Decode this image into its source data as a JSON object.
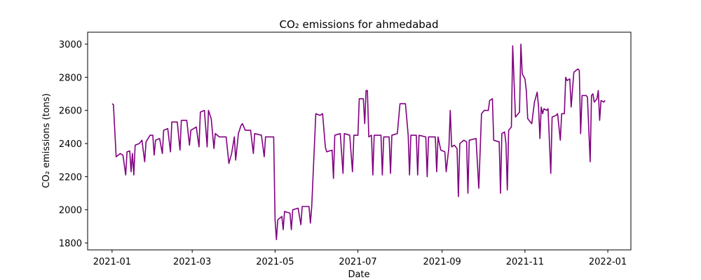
{
  "chart_data": {
    "type": "line",
    "title": "CO₂ emissions for ahmedabad",
    "x_label": "Date",
    "y_label": "CO₂ emissions (tons)",
    "color": "#800080",
    "x": [
      0,
      1,
      3,
      6,
      8,
      10,
      11,
      13,
      14,
      15,
      16,
      17,
      20,
      22,
      24,
      25,
      28,
      30,
      31,
      32,
      35,
      37,
      38,
      41,
      43,
      44,
      48,
      50,
      51,
      55,
      57,
      58,
      62,
      64,
      65,
      68,
      70,
      71,
      73,
      75,
      76,
      79,
      84,
      86,
      88,
      90,
      91,
      93,
      95,
      96,
      98,
      102,
      104,
      105,
      110,
      112,
      113,
      119,
      120,
      121,
      122,
      125,
      126,
      127,
      131,
      132,
      133,
      137,
      139,
      140,
      145,
      146,
      147,
      150,
      153,
      155,
      157,
      158,
      162,
      163,
      164,
      168,
      170,
      171,
      175,
      177,
      178,
      181,
      182,
      185,
      186,
      187,
      188,
      189,
      191,
      192,
      193,
      198,
      199,
      200,
      204,
      205,
      206,
      210,
      212,
      216,
      218,
      219,
      220,
      224,
      225,
      226,
      231,
      232,
      233,
      238,
      239,
      240,
      242,
      245,
      246,
      248,
      249,
      250,
      252,
      254,
      255,
      256,
      259,
      261,
      262,
      263,
      268,
      270,
      272,
      274,
      277,
      278,
      280,
      281,
      285,
      286,
      287,
      289,
      290,
      291,
      292,
      294,
      295,
      297,
      300,
      301,
      302,
      304,
      305,
      306,
      308,
      309,
      311,
      313,
      314,
      315,
      316,
      317,
      318,
      320,
      321,
      323,
      324,
      327,
      328,
      330,
      331,
      333,
      334,
      335,
      337,
      338,
      340,
      343,
      344,
      345,
      346,
      349,
      350,
      352,
      353,
      354,
      355,
      357,
      358,
      359,
      360,
      362,
      363
    ],
    "values": [
      2640,
      2635,
      2320,
      2340,
      2330,
      2210,
      2350,
      2355,
      2230,
      2340,
      2210,
      2390,
      2400,
      2420,
      2290,
      2410,
      2450,
      2450,
      2330,
      2420,
      2430,
      2340,
      2480,
      2490,
      2350,
      2530,
      2530,
      2360,
      2540,
      2540,
      2390,
      2480,
      2500,
      2380,
      2590,
      2600,
      2380,
      2600,
      2550,
      2370,
      2460,
      2440,
      2440,
      2280,
      2340,
      2440,
      2300,
      2460,
      2510,
      2520,
      2480,
      2480,
      2340,
      2460,
      2450,
      2320,
      2440,
      2440,
      1940,
      1820,
      1940,
      1960,
      1880,
      1990,
      1980,
      1880,
      2000,
      2010,
      1910,
      2020,
      2020,
      1920,
      2020,
      2580,
      2570,
      2580,
      2380,
      2350,
      2360,
      2190,
      2450,
      2460,
      2220,
      2460,
      2450,
      2230,
      2450,
      2450,
      2670,
      2670,
      2520,
      2720,
      2720,
      2440,
      2450,
      2210,
      2450,
      2450,
      2210,
      2440,
      2440,
      2220,
      2450,
      2460,
      2640,
      2640,
      2450,
      2210,
      2450,
      2450,
      2210,
      2450,
      2440,
      2200,
      2440,
      2440,
      2230,
      2440,
      2360,
      2350,
      2230,
      2380,
      2600,
      2380,
      2390,
      2370,
      2080,
      2400,
      2420,
      2410,
      2100,
      2420,
      2430,
      2130,
      2580,
      2600,
      2600,
      2660,
      2670,
      2420,
      2410,
      2100,
      2460,
      2470,
      2400,
      2120,
      2480,
      2500,
      2990,
      2560,
      2590,
      3000,
      2820,
      2790,
      2720,
      2550,
      2530,
      2520,
      2650,
      2710,
      2620,
      2430,
      2620,
      2580,
      2610,
      2600,
      2610,
      2220,
      2560,
      2570,
      2580,
      2420,
      2580,
      2580,
      2800,
      2780,
      2790,
      2620,
      2830,
      2850,
      2840,
      2460,
      2690,
      2690,
      2680,
      2290,
      2690,
      2700,
      2650,
      2670,
      2720,
      2540,
      2660,
      2650,
      2660
    ],
    "xlim": [
      -18,
      382
    ],
    "ylim": [
      1758,
      3072
    ],
    "xticks": [
      {
        "value": 0,
        "label": "2021-01"
      },
      {
        "value": 59,
        "label": "2021-03"
      },
      {
        "value": 120,
        "label": "2021-05"
      },
      {
        "value": 181,
        "label": "2021-07"
      },
      {
        "value": 243,
        "label": "2021-09"
      },
      {
        "value": 304,
        "label": "2021-11"
      },
      {
        "value": 365,
        "label": "2022-01"
      }
    ],
    "yticks": [
      1800,
      2000,
      2200,
      2400,
      2600,
      2800,
      3000
    ]
  }
}
